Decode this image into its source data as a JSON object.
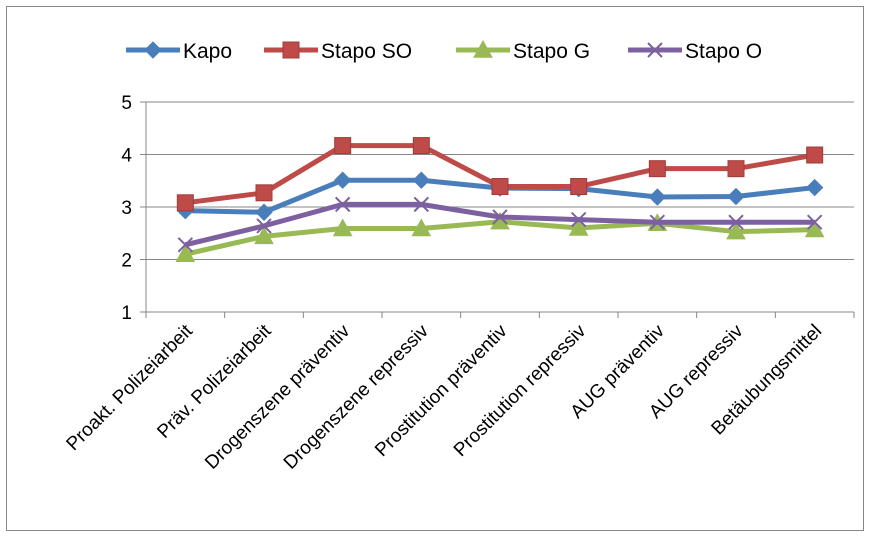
{
  "chart_data": {
    "type": "line",
    "title": "",
    "xlabel": "",
    "ylabel": "",
    "ylim": [
      1,
      5
    ],
    "yticks": [
      1,
      2,
      3,
      4,
      5
    ],
    "grid": "horizontal",
    "legend_position": "top",
    "categories": [
      "Proakt. Polizeiarbeit",
      "Präv. Polizeiarbeit",
      "Drogenszene präventiv",
      "Drogenszene repressiv",
      "Prostitution präventiv",
      "Prostitution repressiv",
      "AUG präventiv",
      "AUG repressiv",
      "Betäubungsmittel"
    ],
    "series": [
      {
        "name": "Kapo",
        "color": "#4a7ebb",
        "marker": "diamond",
        "values": [
          2.93,
          2.9,
          3.51,
          3.51,
          3.36,
          3.35,
          3.19,
          3.2,
          3.37
        ]
      },
      {
        "name": "Stapo SO",
        "color": "#be4b48",
        "marker": "square",
        "values": [
          3.08,
          3.27,
          4.17,
          4.17,
          3.39,
          3.39,
          3.73,
          3.73,
          3.99
        ]
      },
      {
        "name": "Stapo G",
        "color": "#98b954",
        "marker": "triangle",
        "values": [
          2.1,
          2.44,
          2.59,
          2.59,
          2.72,
          2.6,
          2.69,
          2.53,
          2.57
        ]
      },
      {
        "name": "Stapo O",
        "color": "#7d60a0",
        "marker": "x",
        "values": [
          2.28,
          2.64,
          3.05,
          3.05,
          2.81,
          2.76,
          2.71,
          2.71,
          2.71
        ]
      }
    ]
  }
}
